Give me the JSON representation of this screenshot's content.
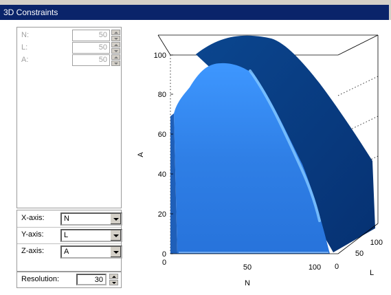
{
  "window": {
    "title": "3D Constraints"
  },
  "params": [
    {
      "label": "N:",
      "value": "50"
    },
    {
      "label": "L:",
      "value": "50"
    },
    {
      "label": "A:",
      "value": "50"
    }
  ],
  "axes_selectors": [
    {
      "label": "X-axis:",
      "value": "N"
    },
    {
      "label": "Y-axis:",
      "value": "L"
    },
    {
      "label": "Z-axis:",
      "value": "A"
    }
  ],
  "resolution": {
    "label": "Resolution:",
    "value": "30"
  },
  "chart_data": {
    "type": "surface3d",
    "xlabel": "N",
    "ylabel": "L",
    "zlabel": "A",
    "x_ticks": [
      "0",
      "50",
      "100"
    ],
    "y_ticks": [
      "0",
      "50",
      "100"
    ],
    "z_ticks": [
      "0",
      "20",
      "40",
      "60",
      "80",
      "100"
    ],
    "xlim": [
      0,
      100
    ],
    "ylim": [
      0,
      100
    ],
    "zlim": [
      0,
      100
    ],
    "box": true,
    "colors": {
      "surface_front": "#2f7fe6",
      "surface_side": "#083a86",
      "edge_highlight": "#7fc4ff"
    }
  }
}
